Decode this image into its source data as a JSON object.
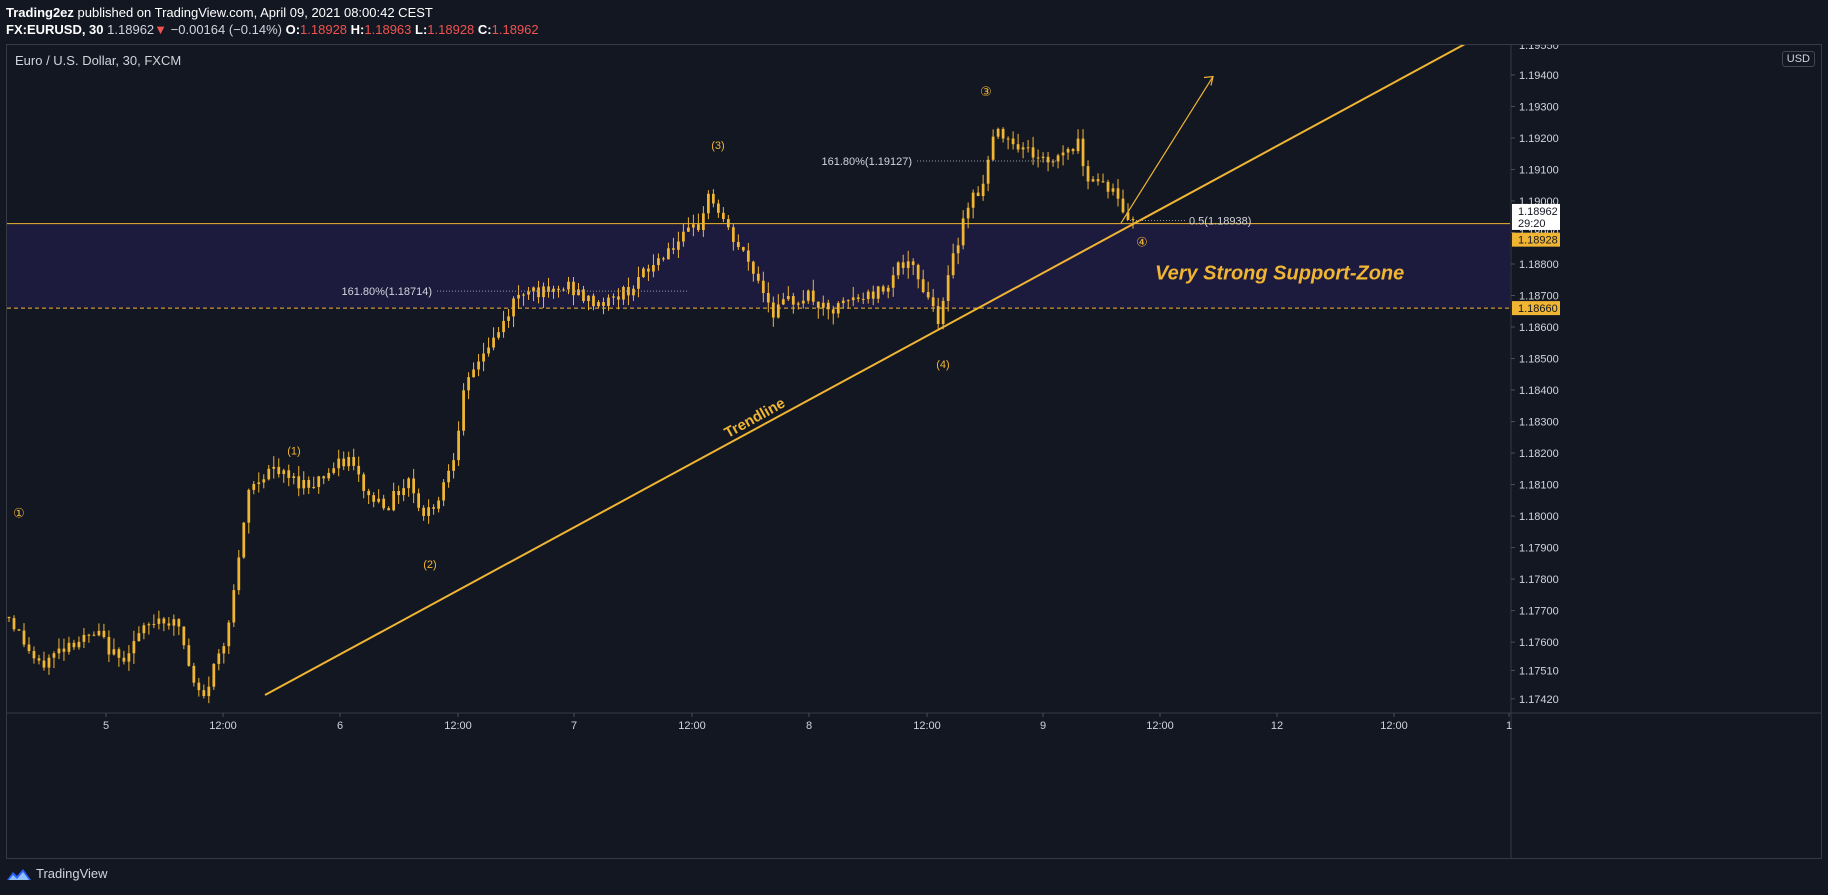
{
  "header": {
    "author": "Trading2ez",
    "published": " published on TradingView.com, April 09, 2021 08:00:42 CEST",
    "symbol": "FX:EURUSD, 30",
    "last": "1.18962",
    "arrow": "▼",
    "change": "−0.00164 (−0.14%)",
    "ohlc": [
      {
        "k": "O:",
        "v": "1.18928"
      },
      {
        "k": "H:",
        "v": "1.18963"
      },
      {
        "k": "L:",
        "v": "1.18928"
      },
      {
        "k": "C:",
        "v": "1.18962"
      }
    ]
  },
  "chart_title": "Euro / U.S. Dollar, 30, FXCM",
  "currency": "USD",
  "footer": {
    "brand": "TradingView"
  },
  "colors": {
    "background": "#131722",
    "candle": "#f0b533",
    "zone": "#1f1c40",
    "axis_text": "#d1d4dc",
    "price_tag": "#f0b533"
  },
  "chart_data": {
    "type": "candlestick",
    "title": "Euro / U.S. Dollar, 30, FXCM",
    "ylim": [
      1.17375,
      1.19495
    ],
    "y_ticks": [
      "1.17420",
      "1.17510",
      "1.17600",
      "1.17700",
      "1.17800",
      "1.17900",
      "1.18000",
      "1.18100",
      "1.18200",
      "1.18300",
      "1.18400",
      "1.18500",
      "1.18600",
      "1.18700",
      "1.18800",
      "1.18900",
      "1.19000",
      "1.19100",
      "1.19200",
      "1.19300",
      "1.19400"
    ],
    "x_ticks": [
      "5",
      "12:00",
      "6",
      "12:00",
      "7",
      "12:00",
      "8",
      "12:00",
      "9",
      "12:00",
      "12",
      "12:00",
      "1"
    ],
    "path": [
      [
        0,
        1.1768
      ],
      [
        6,
        1.1752
      ],
      [
        12,
        1.176
      ],
      [
        18,
        1.1762
      ],
      [
        22,
        1.1754
      ],
      [
        26,
        1.1762
      ],
      [
        30,
        1.1768
      ],
      [
        34,
        1.1765
      ],
      [
        37,
        1.1746
      ],
      [
        39,
        1.1742
      ],
      [
        41,
        1.1752
      ],
      [
        43,
        1.176
      ],
      [
        46,
        1.1785
      ],
      [
        48,
        1.1808
      ],
      [
        52,
        1.1815
      ],
      [
        56,
        1.1812
      ],
      [
        60,
        1.181
      ],
      [
        64,
        1.1814
      ],
      [
        68,
        1.1818
      ],
      [
        72,
        1.1806
      ],
      [
        76,
        1.1804
      ],
      [
        80,
        1.1812
      ],
      [
        83,
        1.18
      ],
      [
        86,
        1.1806
      ],
      [
        89,
        1.182
      ],
      [
        91,
        1.1838
      ],
      [
        94,
        1.185
      ],
      [
        98,
        1.1858
      ],
      [
        101,
        1.1868
      ],
      [
        104,
        1.1873
      ],
      [
        108,
        1.187
      ],
      [
        112,
        1.1873
      ],
      [
        116,
        1.1868
      ],
      [
        120,
        1.1868
      ],
      [
        124,
        1.1872
      ],
      [
        128,
        1.1878
      ],
      [
        132,
        1.1885
      ],
      [
        135,
        1.1888
      ],
      [
        138,
        1.1892
      ],
      [
        140,
        1.1902
      ],
      [
        142,
        1.1897
      ],
      [
        144,
        1.189
      ],
      [
        147,
        1.1883
      ],
      [
        150,
        1.1875
      ],
      [
        153,
        1.1865
      ],
      [
        156,
        1.1868
      ],
      [
        160,
        1.187
      ],
      [
        164,
        1.1864
      ],
      [
        168,
        1.1868
      ],
      [
        172,
        1.187
      ],
      [
        175,
        1.1872
      ],
      [
        178,
        1.188
      ],
      [
        181,
        1.1878
      ],
      [
        184,
        1.187
      ],
      [
        186,
        1.1863
      ],
      [
        188,
        1.1875
      ],
      [
        190,
        1.1888
      ],
      [
        192,
        1.19
      ],
      [
        195,
        1.1905
      ],
      [
        197,
        1.192
      ],
      [
        199,
        1.1922
      ],
      [
        202,
        1.1918
      ],
      [
        205,
        1.1915
      ],
      [
        208,
        1.1912
      ],
      [
        211,
        1.1916
      ],
      [
        214,
        1.1918
      ],
      [
        216,
        1.1908
      ],
      [
        219,
        1.1906
      ],
      [
        221,
        1.1903
      ],
      [
        223,
        1.1897
      ],
      [
        225,
        1.1893
      ]
    ],
    "series": [
      {
        "name": "Trendline",
        "type": "line",
        "points": [
          [
            "2021-04-05 12:00",
            1.17432
          ],
          [
            "2021-04-09 06:00",
            1.1893
          ]
        ]
      }
    ],
    "horizontal_levels": [
      1.18928,
      1.1866
    ],
    "support_zone": [
      1.1866,
      1.18928
    ],
    "labels": {
      "support_zone": "Very Strong Support-Zone",
      "trendline": "Trendline",
      "fib_1": "161.80%(1.18714)",
      "fib_2": "161.80%(1.19127)",
      "retrace": "0.5(1.18938)"
    },
    "waves": [
      {
        "label": "①",
        "circled": true
      },
      {
        "label": "(1)",
        "circled": false
      },
      {
        "label": "(2)",
        "circled": false
      },
      {
        "label": "(3)",
        "circled": false
      },
      {
        "label": "(4)",
        "circled": false
      },
      {
        "label": "③",
        "circled": true
      },
      {
        "label": "④",
        "circled": true
      }
    ],
    "price_tags": {
      "last_price": "1.18962",
      "countdown": "29:20",
      "level_upper": "1.18928",
      "level_lower": "1.18660",
      "top_partial": "1.19550"
    }
  }
}
